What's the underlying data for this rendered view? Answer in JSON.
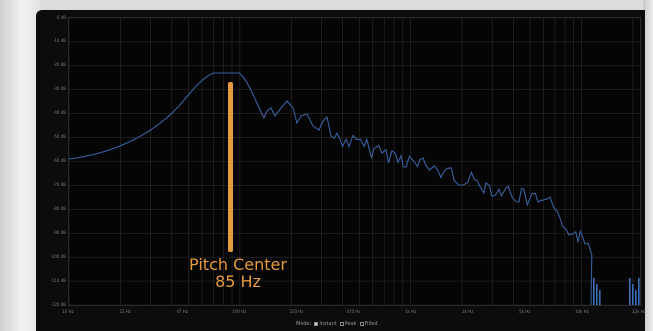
{
  "spectrum": {
    "y_axis": {
      "unit": "dB",
      "ticks": [
        "0 dB",
        "-10 dB",
        "-20 dB",
        "-30 dB",
        "-40 dB",
        "-50 dB",
        "-60 dB",
        "-70 dB",
        "-80 dB",
        "-90 dB",
        "-100 dB",
        "-110 dB",
        "-120 dB"
      ]
    },
    "x_axis": {
      "unit": "Hz",
      "ticks": [
        "10 Hz",
        "22 Hz",
        "47 Hz",
        "100 Hz",
        "220 Hz",
        "470 Hz",
        "1k Hz",
        "2k Hz",
        "5k Hz",
        "10k Hz",
        "22k Hz"
      ]
    },
    "colors": {
      "curve": "#3a5f9e",
      "grid": "#2b2b2b",
      "annotation": "#e49a3f"
    }
  },
  "mode_bar": {
    "label": "Mode:",
    "options": [
      {
        "label": "Instant",
        "checked": true
      },
      {
        "label": "Peak",
        "checked": false
      },
      {
        "label": "Filled",
        "checked": false
      }
    ]
  },
  "annotation": {
    "line1": "Pitch Center",
    "line2": "85 Hz"
  }
}
